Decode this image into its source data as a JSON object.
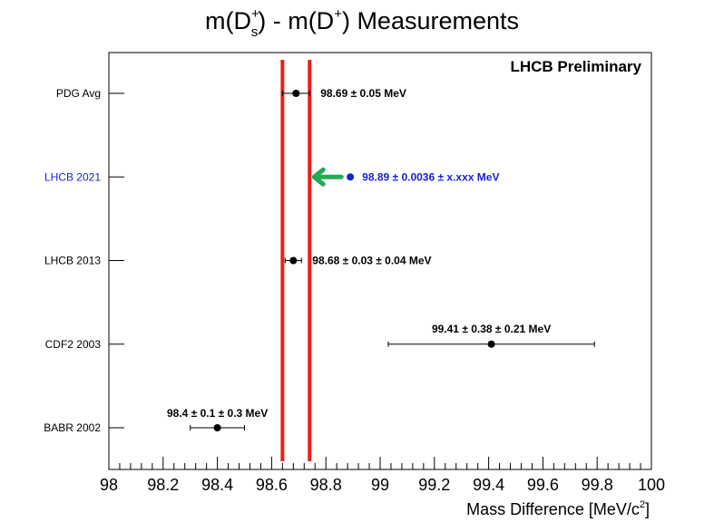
{
  "chart_data": {
    "type": "scatter",
    "title_parts": {
      "m1": "m(D",
      "m1_sup": "+",
      "m1_sub": "s",
      "mid": ") - m(D",
      "m2_sup": "+",
      "end": ") Measurements"
    },
    "annotation": "LHCB Preliminary",
    "xlabel_main": "Mass Difference [MeV/c",
    "xlabel_sup": "2",
    "xlabel_end": "]",
    "xlim": [
      98,
      100
    ],
    "xticks": [
      "98",
      "98.2",
      "98.4",
      "98.6",
      "98.8",
      "99",
      "99.2",
      "99.4",
      "99.6",
      "99.8",
      "100"
    ],
    "xtick_values": [
      98,
      98.2,
      98.4,
      98.6,
      98.8,
      99,
      99.2,
      99.4,
      99.6,
      99.8,
      100
    ],
    "reference_lines": [
      98.64,
      98.74
    ],
    "reference_color": "#e8201c",
    "highlight_color": "#1a24cc",
    "arrow_color": "#22aa55",
    "measurements": [
      {
        "name": "PDG Avg",
        "value": 98.69,
        "err_lo": 0.05,
        "err_hi": 0.05,
        "label": "98.69  ± 0.05 MeV",
        "highlight": false
      },
      {
        "name": "LHCB 2021",
        "value": 98.89,
        "err_lo": 0.0036,
        "err_hi": 0.0036,
        "label": "98.89  ± 0.0036  ± x.xxx MeV",
        "highlight": true
      },
      {
        "name": "LHCB 2013",
        "value": 98.68,
        "err_lo": 0.03,
        "err_hi": 0.03,
        "label": "98.68  ± 0.03  ± 0.04 MeV",
        "highlight": false
      },
      {
        "name": "CDF2 2003",
        "value": 99.41,
        "err_lo": 0.38,
        "err_hi": 0.38,
        "label": "99.41  ± 0.38  ± 0.21 MeV",
        "highlight": false
      },
      {
        "name": "BABR 2002",
        "value": 98.4,
        "err_lo": 0.1,
        "err_hi": 0.1,
        "label": "98.4  ± 0.1  ± 0.3 MeV",
        "highlight": false
      }
    ]
  }
}
